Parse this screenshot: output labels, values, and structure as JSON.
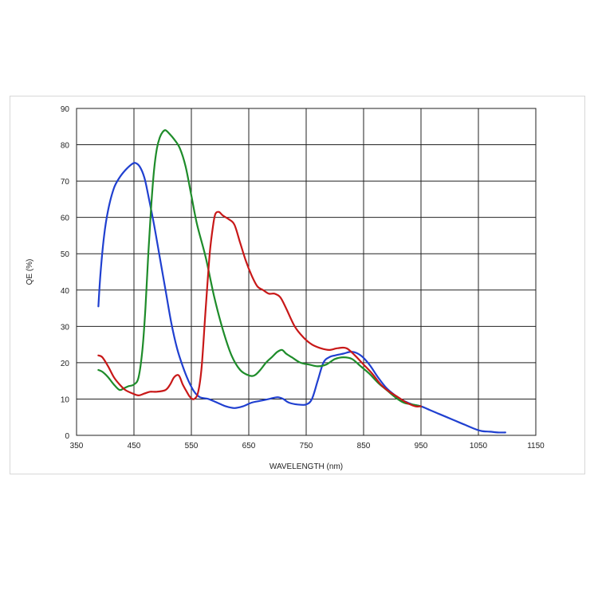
{
  "chart_data": {
    "type": "line",
    "xlabel": "WAVELENGTH (nm)",
    "ylabel": "QE (%)",
    "xlim": [
      350,
      1150
    ],
    "ylim": [
      0,
      90
    ],
    "xticks": [
      350,
      450,
      550,
      650,
      750,
      850,
      950,
      1050,
      1150
    ],
    "yticks": [
      0,
      10,
      20,
      30,
      40,
      50,
      60,
      70,
      80,
      90
    ],
    "grid": true,
    "series": [
      {
        "color": "#2040d0",
        "points": [
          [
            388,
            35.5
          ],
          [
            392,
            45
          ],
          [
            398,
            55
          ],
          [
            405,
            62
          ],
          [
            415,
            68
          ],
          [
            425,
            71
          ],
          [
            435,
            73
          ],
          [
            445,
            74.5
          ],
          [
            452,
            75
          ],
          [
            460,
            74
          ],
          [
            468,
            71
          ],
          [
            475,
            66
          ],
          [
            485,
            58
          ],
          [
            495,
            49
          ],
          [
            505,
            40
          ],
          [
            515,
            31
          ],
          [
            525,
            24
          ],
          [
            535,
            19
          ],
          [
            545,
            15
          ],
          [
            555,
            12
          ],
          [
            565,
            10.5
          ],
          [
            580,
            10
          ],
          [
            595,
            9
          ],
          [
            610,
            8
          ],
          [
            625,
            7.5
          ],
          [
            640,
            8
          ],
          [
            655,
            9
          ],
          [
            670,
            9.5
          ],
          [
            685,
            10
          ],
          [
            700,
            10.5
          ],
          [
            710,
            10
          ],
          [
            720,
            9
          ],
          [
            735,
            8.5
          ],
          [
            750,
            8.5
          ],
          [
            760,
            10
          ],
          [
            770,
            15
          ],
          [
            780,
            20
          ],
          [
            790,
            21.5
          ],
          [
            800,
            22
          ],
          [
            815,
            22.5
          ],
          [
            830,
            23
          ],
          [
            845,
            22
          ],
          [
            860,
            19.5
          ],
          [
            875,
            16
          ],
          [
            890,
            13
          ],
          [
            905,
            11
          ],
          [
            920,
            9.5
          ],
          [
            935,
            8.5
          ],
          [
            950,
            8
          ],
          [
            965,
            7
          ],
          [
            980,
            6
          ],
          [
            995,
            5
          ],
          [
            1010,
            4
          ],
          [
            1025,
            3
          ],
          [
            1040,
            2
          ],
          [
            1055,
            1.2
          ],
          [
            1070,
            1
          ],
          [
            1085,
            0.8
          ],
          [
            1097,
            0.8
          ]
        ]
      },
      {
        "color": "#1e8c2a",
        "points": [
          [
            388,
            18
          ],
          [
            395,
            17.5
          ],
          [
            405,
            16
          ],
          [
            415,
            14
          ],
          [
            425,
            12.5
          ],
          [
            433,
            13
          ],
          [
            440,
            13.5
          ],
          [
            450,
            14
          ],
          [
            458,
            16
          ],
          [
            465,
            24
          ],
          [
            470,
            35
          ],
          [
            475,
            50
          ],
          [
            480,
            63
          ],
          [
            485,
            73
          ],
          [
            490,
            79
          ],
          [
            495,
            82
          ],
          [
            500,
            83.5
          ],
          [
            505,
            84
          ],
          [
            512,
            83
          ],
          [
            520,
            81.5
          ],
          [
            530,
            79
          ],
          [
            540,
            74
          ],
          [
            550,
            66
          ],
          [
            560,
            58
          ],
          [
            575,
            49
          ],
          [
            590,
            38
          ],
          [
            605,
            29
          ],
          [
            620,
            22
          ],
          [
            635,
            18
          ],
          [
            650,
            16.5
          ],
          [
            660,
            16.5
          ],
          [
            670,
            18
          ],
          [
            680,
            20
          ],
          [
            690,
            21.5
          ],
          [
            700,
            23
          ],
          [
            708,
            23.5
          ],
          [
            715,
            22.5
          ],
          [
            725,
            21.5
          ],
          [
            740,
            20
          ],
          [
            755,
            19.5
          ],
          [
            770,
            19
          ],
          [
            785,
            19.5
          ],
          [
            800,
            21
          ],
          [
            815,
            21.5
          ],
          [
            830,
            21
          ],
          [
            845,
            19
          ],
          [
            860,
            17
          ],
          [
            875,
            14.5
          ],
          [
            890,
            12.5
          ],
          [
            905,
            10.5
          ],
          [
            920,
            9
          ],
          [
            935,
            8.5
          ],
          [
            950,
            8
          ]
        ]
      },
      {
        "color": "#c81818",
        "points": [
          [
            388,
            22
          ],
          [
            395,
            21.5
          ],
          [
            405,
            19
          ],
          [
            415,
            16
          ],
          [
            425,
            14
          ],
          [
            435,
            12.5
          ],
          [
            448,
            11.5
          ],
          [
            458,
            11
          ],
          [
            468,
            11.5
          ],
          [
            478,
            12
          ],
          [
            490,
            12
          ],
          [
            505,
            12.5
          ],
          [
            513,
            14
          ],
          [
            520,
            16
          ],
          [
            528,
            16.5
          ],
          [
            535,
            14
          ],
          [
            542,
            12
          ],
          [
            548,
            10.5
          ],
          [
            555,
            10
          ],
          [
            562,
            12
          ],
          [
            568,
            19
          ],
          [
            575,
            35
          ],
          [
            582,
            50
          ],
          [
            588,
            58
          ],
          [
            592,
            61
          ],
          [
            598,
            61.5
          ],
          [
            605,
            60.5
          ],
          [
            615,
            59.5
          ],
          [
            625,
            58
          ],
          [
            635,
            53
          ],
          [
            645,
            48
          ],
          [
            655,
            44
          ],
          [
            665,
            41
          ],
          [
            675,
            40
          ],
          [
            685,
            39
          ],
          [
            695,
            39
          ],
          [
            705,
            38
          ],
          [
            715,
            35
          ],
          [
            730,
            30
          ],
          [
            745,
            27
          ],
          [
            760,
            25
          ],
          [
            775,
            24
          ],
          [
            790,
            23.5
          ],
          [
            805,
            24
          ],
          [
            820,
            24
          ],
          [
            835,
            22
          ],
          [
            850,
            19.5
          ],
          [
            865,
            17
          ],
          [
            880,
            14
          ],
          [
            895,
            12
          ],
          [
            910,
            10.5
          ],
          [
            925,
            9
          ],
          [
            940,
            8
          ],
          [
            950,
            8
          ]
        ]
      }
    ]
  }
}
